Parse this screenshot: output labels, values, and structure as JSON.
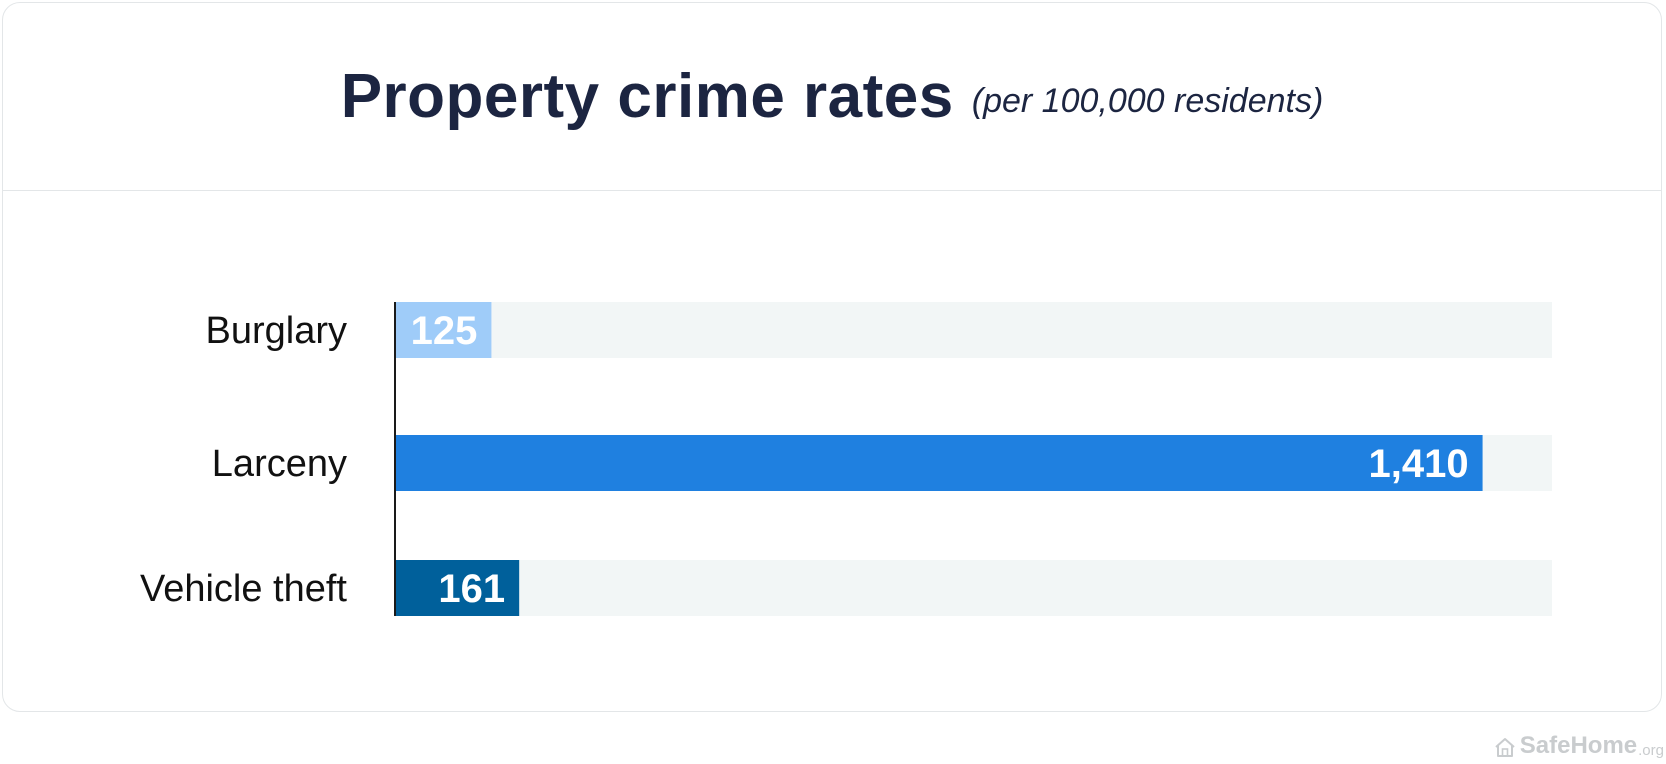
{
  "chart_data": {
    "type": "bar",
    "orientation": "horizontal",
    "title": "Property crime rates",
    "subtitle": "(per 100,000 residents)",
    "categories": [
      "Burglary",
      "Larceny",
      "Vehicle theft"
    ],
    "values": [
      125,
      1410,
      161
    ],
    "value_labels": [
      "125",
      "1,410",
      "161"
    ],
    "colors": [
      "#9fccf9",
      "#1f80e0",
      "#00609b"
    ],
    "track_color": "#f2f6f6",
    "xlim": [
      0,
      1500
    ],
    "grid": false,
    "legend": "none"
  },
  "watermark": {
    "brand": "SafeHome",
    "suffix": ".org",
    "icon": "house-icon"
  }
}
